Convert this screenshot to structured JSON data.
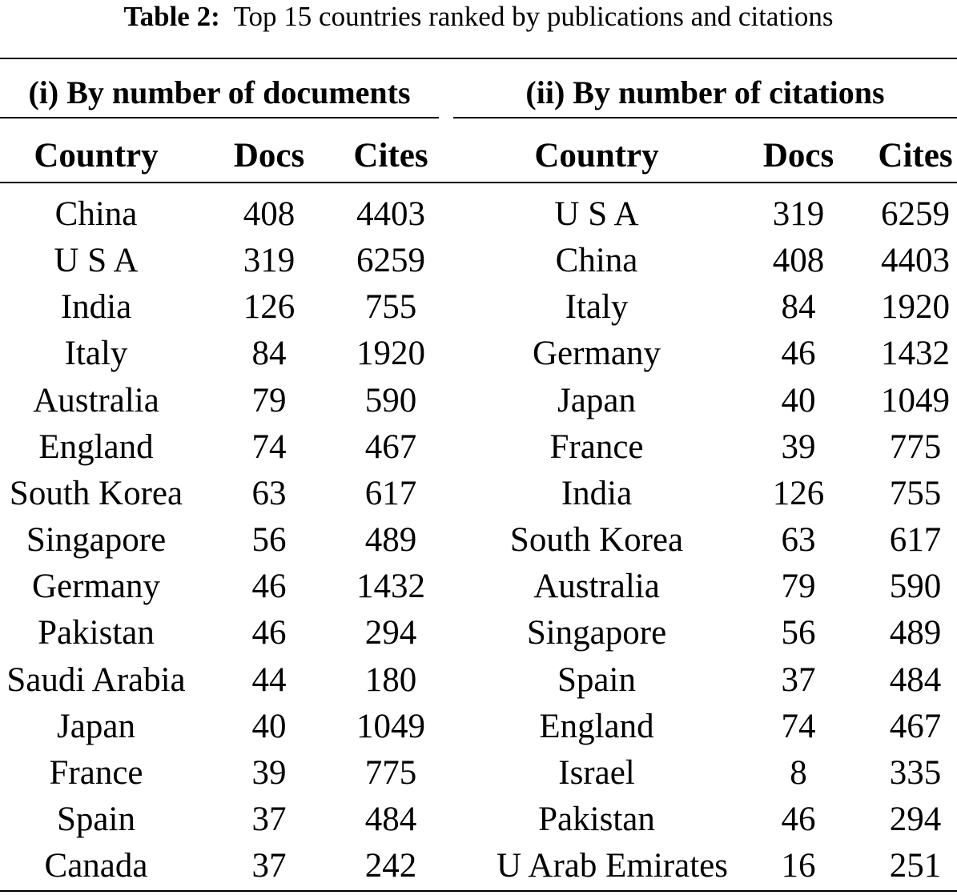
{
  "caption": {
    "label": "Table 2:",
    "text": "Top 15 countries ranked by publications and citations"
  },
  "table_left": {
    "group_title": "(i) By number of documents",
    "columns": [
      "Country",
      "Docs",
      "Cites"
    ],
    "rows": [
      [
        "China",
        "408",
        "4403"
      ],
      [
        "U S A",
        "319",
        "6259"
      ],
      [
        "India",
        "126",
        "755"
      ],
      [
        "Italy",
        "84",
        "1920"
      ],
      [
        "Australia",
        "79",
        "590"
      ],
      [
        "England",
        "74",
        "467"
      ],
      [
        "South Korea",
        "63",
        "617"
      ],
      [
        "Singapore",
        "56",
        "489"
      ],
      [
        "Germany",
        "46",
        "1432"
      ],
      [
        "Pakistan",
        "46",
        "294"
      ],
      [
        "Saudi Arabia",
        "44",
        "180"
      ],
      [
        "Japan",
        "40",
        "1049"
      ],
      [
        "France",
        "39",
        "775"
      ],
      [
        "Spain",
        "37",
        "484"
      ],
      [
        "Canada",
        "37",
        "242"
      ]
    ]
  },
  "table_right": {
    "group_title": "(ii) By number of citations",
    "columns": [
      "Country",
      "Docs",
      "Cites"
    ],
    "rows": [
      [
        "U S A",
        "319",
        "6259"
      ],
      [
        "China",
        "408",
        "4403"
      ],
      [
        "Italy",
        "84",
        "1920"
      ],
      [
        "Germany",
        "46",
        "1432"
      ],
      [
        "Japan",
        "40",
        "1049"
      ],
      [
        "France",
        "39",
        "775"
      ],
      [
        "India",
        "126",
        "755"
      ],
      [
        "South Korea",
        "63",
        "617"
      ],
      [
        "Australia",
        "79",
        "590"
      ],
      [
        "Singapore",
        "56",
        "489"
      ],
      [
        "Spain",
        "37",
        "484"
      ],
      [
        "England",
        "74",
        "467"
      ],
      [
        "Israel",
        "8",
        "335"
      ],
      [
        "Pakistan",
        "46",
        "294"
      ],
      [
        "U Arab Emirates",
        "16",
        "251"
      ]
    ]
  }
}
